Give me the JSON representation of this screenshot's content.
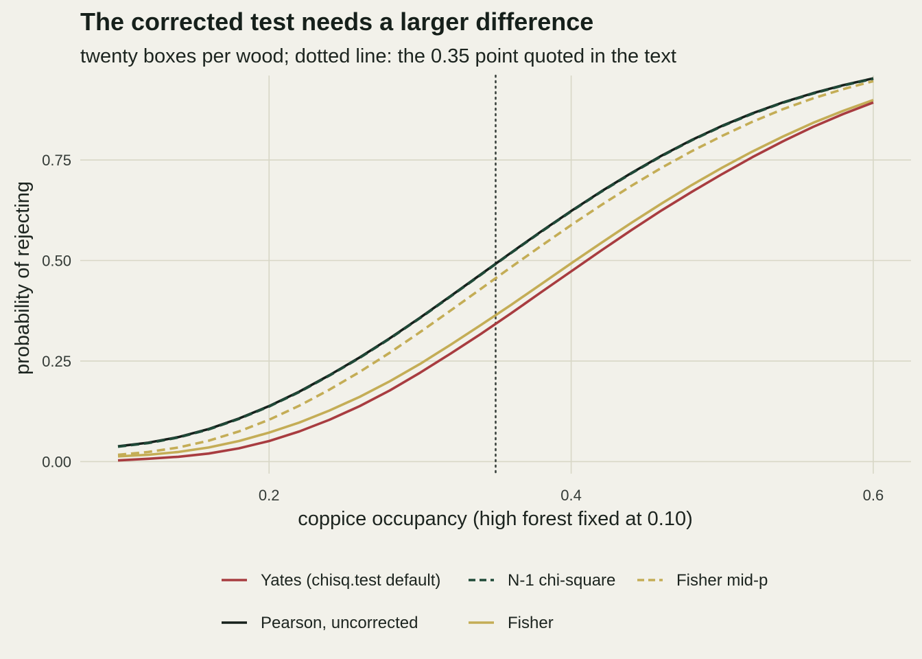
{
  "chart_data": {
    "type": "line",
    "title": "The corrected test needs a larger difference",
    "subtitle": "twenty boxes per wood; dotted line: the 0.35 point quoted in the text",
    "xlabel": "coppice occupancy (high forest fixed at 0.10)",
    "ylabel": "probability of rejecting",
    "xlim": [
      0.075,
      0.625
    ],
    "ylim": [
      -0.03,
      0.96
    ],
    "x_ticks": [
      "0.2",
      "0.4",
      "0.6"
    ],
    "y_ticks": [
      "0.00",
      "0.25",
      "0.50",
      "0.75"
    ],
    "grid": true,
    "legend_position": "bottom",
    "reference_line": {
      "axis": "x",
      "value": 0.35,
      "style": "dotted"
    },
    "x": [
      0.1,
      0.12,
      0.14,
      0.16,
      0.18,
      0.2,
      0.22,
      0.24,
      0.26,
      0.28,
      0.3,
      0.32,
      0.34,
      0.36,
      0.38,
      0.4,
      0.42,
      0.44,
      0.46,
      0.48,
      0.5,
      0.52,
      0.54,
      0.56,
      0.58,
      0.6
    ],
    "series": [
      {
        "name": "Yates (chisq.test default)",
        "color": "#a83c40",
        "dash": "solid",
        "values": [
          0.003,
          0.007,
          0.012,
          0.02,
          0.033,
          0.051,
          0.075,
          0.104,
          0.138,
          0.177,
          0.221,
          0.268,
          0.317,
          0.368,
          0.421,
          0.473,
          0.525,
          0.576,
          0.625,
          0.671,
          0.715,
          0.757,
          0.796,
          0.832,
          0.864,
          0.893
        ]
      },
      {
        "name": "N-1 chi-square",
        "color": "#1f4a38",
        "dash": "dashed",
        "values": [
          0.037,
          0.046,
          0.06,
          0.08,
          0.106,
          0.137,
          0.173,
          0.214,
          0.258,
          0.306,
          0.357,
          0.41,
          0.464,
          0.518,
          0.571,
          0.622,
          0.671,
          0.717,
          0.76,
          0.799,
          0.834,
          0.865,
          0.892,
          0.915,
          0.935,
          0.952
        ]
      },
      {
        "name": "Fisher mid-p",
        "color": "#c4ad56",
        "dash": "dashed",
        "values": [
          0.017,
          0.024,
          0.035,
          0.052,
          0.075,
          0.104,
          0.139,
          0.179,
          0.223,
          0.271,
          0.322,
          0.375,
          0.429,
          0.483,
          0.536,
          0.588,
          0.638,
          0.686,
          0.731,
          0.772,
          0.81,
          0.845,
          0.876,
          0.903,
          0.926,
          0.946
        ]
      },
      {
        "name": "Pearson, uncorrected",
        "color": "#16201b",
        "dash": "solid",
        "values": [
          0.038,
          0.047,
          0.061,
          0.081,
          0.107,
          0.138,
          0.174,
          0.215,
          0.259,
          0.307,
          0.358,
          0.411,
          0.465,
          0.519,
          0.572,
          0.623,
          0.672,
          0.718,
          0.761,
          0.8,
          0.835,
          0.866,
          0.893,
          0.916,
          0.936,
          0.953
        ]
      },
      {
        "name": "Fisher",
        "color": "#c4ad56",
        "dash": "solid",
        "values": [
          0.013,
          0.017,
          0.024,
          0.035,
          0.051,
          0.072,
          0.097,
          0.127,
          0.161,
          0.2,
          0.243,
          0.29,
          0.339,
          0.389,
          0.441,
          0.493,
          0.544,
          0.594,
          0.642,
          0.688,
          0.731,
          0.771,
          0.808,
          0.842,
          0.872,
          0.899
        ]
      }
    ]
  }
}
